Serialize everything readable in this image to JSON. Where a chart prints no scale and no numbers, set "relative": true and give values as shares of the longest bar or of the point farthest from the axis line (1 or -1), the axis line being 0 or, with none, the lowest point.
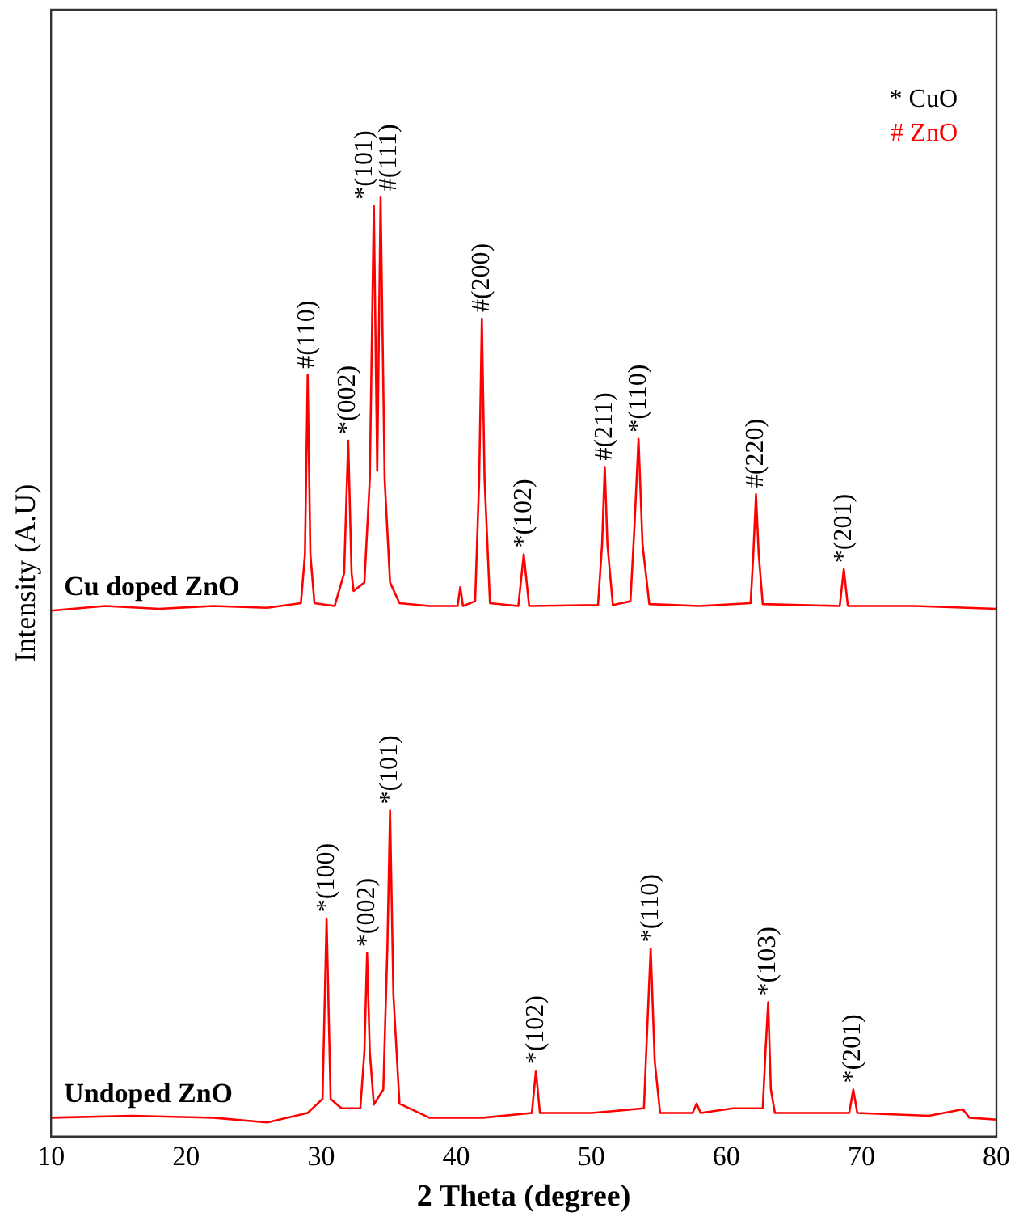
{
  "chart_data": {
    "type": "line",
    "relative": true,
    "xlabel": "2 Theta (degree)",
    "ylabel": "Intensity (A.U)",
    "xlim": [
      10,
      80
    ],
    "xticks": [
      10,
      20,
      30,
      40,
      50,
      60,
      70,
      80
    ],
    "legend": false,
    "grid": false,
    "marker": "none",
    "series": [
      {
        "name": "Cu doped ZnO",
        "color": "#ff0000",
        "x": [
          10,
          14,
          18,
          22,
          26,
          28.5,
          28.8,
          29.0,
          29.2,
          29.5,
          31.0,
          31.7,
          32.0,
          32.25,
          32.4,
          33.2,
          33.6,
          33.9,
          34.15,
          34.4,
          34.7,
          35.1,
          35.8,
          38,
          40.1,
          40.3,
          40.5,
          41.4,
          41.7,
          41.9,
          42.1,
          42.5,
          44.6,
          45.0,
          45.4,
          50.5,
          50.8,
          51.0,
          51.2,
          51.6,
          52.9,
          53.2,
          53.5,
          53.8,
          54.3,
          58,
          61.8,
          62.0,
          62.2,
          62.4,
          62.7,
          68.4,
          68.7,
          69.0,
          74,
          80
        ],
        "values": [
          0.56,
          0.565,
          0.562,
          0.565,
          0.563,
          0.568,
          0.62,
          0.811,
          0.62,
          0.568,
          0.565,
          0.6,
          0.741,
          0.6,
          0.581,
          0.59,
          0.7,
          0.991,
          0.709,
          1.0,
          0.7,
          0.59,
          0.568,
          0.565,
          0.565,
          0.585,
          0.565,
          0.57,
          0.7,
          0.871,
          0.7,
          0.568,
          0.565,
          0.62,
          0.565,
          0.566,
          0.63,
          0.713,
          0.63,
          0.566,
          0.57,
          0.65,
          0.743,
          0.63,
          0.567,
          0.565,
          0.568,
          0.62,
          0.684,
          0.62,
          0.567,
          0.565,
          0.604,
          0.565,
          0.565,
          0.562
        ]
      },
      {
        "name": "Undoped ZnO",
        "color": "#ff0000",
        "x": [
          10,
          16,
          22,
          26,
          29,
          30.1,
          30.4,
          30.7,
          31.5,
          32.9,
          33.2,
          33.4,
          33.6,
          33.9,
          34.6,
          34.9,
          35.1,
          35.35,
          35.8,
          38,
          42,
          45.6,
          45.9,
          46.2,
          50,
          53.9,
          54.1,
          54.4,
          54.7,
          55.1,
          57.5,
          57.8,
          58.1,
          60.5,
          62.7,
          62.9,
          63.1,
          63.3,
          63.6,
          69.1,
          69.4,
          69.7,
          75,
          77.5,
          78,
          80
        ],
        "values": [
          0.02,
          0.022,
          0.02,
          0.015,
          0.025,
          0.04,
          0.232,
          0.04,
          0.03,
          0.03,
          0.09,
          0.195,
          0.09,
          0.034,
          0.05,
          0.2,
          0.347,
          0.15,
          0.035,
          0.02,
          0.02,
          0.025,
          0.07,
          0.025,
          0.025,
          0.03,
          0.1,
          0.2,
          0.08,
          0.025,
          0.025,
          0.035,
          0.025,
          0.03,
          0.03,
          0.09,
          0.143,
          0.05,
          0.025,
          0.025,
          0.05,
          0.025,
          0.022,
          0.029,
          0.02,
          0.018
        ]
      }
    ],
    "annotations": [
      "* CuO",
      "# ZnO",
      {
        "text": "#(110)",
        "x": 29.0,
        "y": 0.811
      },
      {
        "text": "*(002)",
        "x": 32.0,
        "y": 0.741
      },
      {
        "text": "*(101)",
        "x": 33.9,
        "y": 0.991
      },
      {
        "text": "#(111)",
        "x": 34.4,
        "y": 1.0
      },
      {
        "text": "#(200)",
        "x": 41.9,
        "y": 0.871
      },
      {
        "text": "*(102)",
        "x": 45.0,
        "y": 0.62
      },
      {
        "text": "#(211)",
        "x": 51.0,
        "y": 0.713
      },
      {
        "text": "*(110)",
        "x": 53.5,
        "y": 0.743
      },
      {
        "text": "#(220)",
        "x": 62.2,
        "y": 0.684
      },
      {
        "text": "*(201)",
        "x": 68.7,
        "y": 0.604
      },
      {
        "text": "*(100)",
        "x": 30.4,
        "y": 0.232
      },
      {
        "text": "*(002)",
        "x": 33.4,
        "y": 0.195
      },
      {
        "text": "*(101)",
        "x": 35.1,
        "y": 0.347
      },
      {
        "text": "*(102)",
        "x": 45.9,
        "y": 0.07
      },
      {
        "text": "*(110)",
        "x": 54.4,
        "y": 0.2
      },
      {
        "text": "*(103)",
        "x": 63.1,
        "y": 0.143
      },
      {
        "text": "*(201)",
        "x": 69.4,
        "y": 0.05
      }
    ]
  }
}
